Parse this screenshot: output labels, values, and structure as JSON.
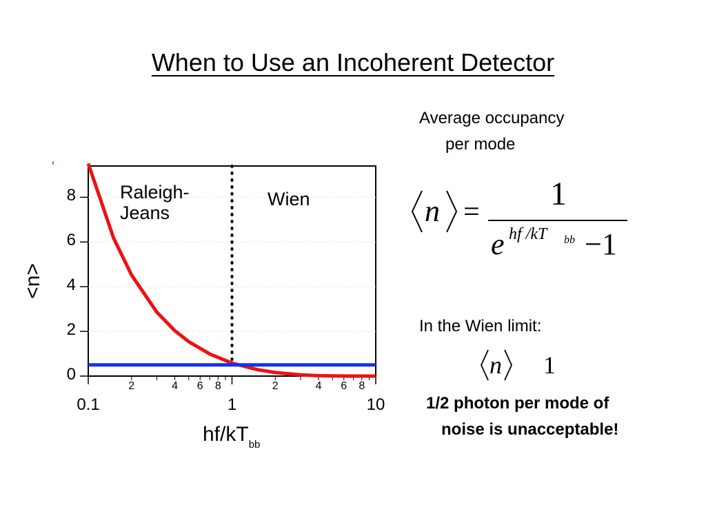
{
  "slide": {
    "title": "When to Use an Incoherent Detector",
    "occupancy_line1": "Average occupancy",
    "occupancy_line2": "per mode",
    "formula": {
      "lhs": "n",
      "numerator": "1",
      "base": "e",
      "exponent": "hf /kT",
      "exponent_sub": "bb",
      "minus_one": "−1"
    },
    "wien_limit_label": "In the Wien limit:",
    "wien_limit_expr": {
      "var": "n",
      "symbol": "",
      "value": "1"
    },
    "note_line1": "1/2 photon per mode of",
    "note_line2": "noise is unacceptable!"
  },
  "chart_data": {
    "type": "line",
    "x_scale": "log",
    "xlim": [
      0.1,
      10
    ],
    "ylim": [
      0,
      9.4
    ],
    "xlabel": "hf/kT",
    "xlabel_sub": "bb",
    "ylabel": "<n>",
    "x_major_ticks": [
      "0.1",
      "1",
      "10"
    ],
    "x_minor_labels": [
      "2",
      "4",
      "6",
      "8",
      "2",
      "4",
      "6",
      "8"
    ],
    "y_ticks": [
      "0",
      "2",
      "4",
      "6",
      "8"
    ],
    "region_left": "Raleigh-Jeans",
    "region_right": "Wien",
    "divider_x": 1,
    "series": [
      {
        "color": "#ee1111",
        "x": [
          0.1,
          0.15,
          0.2,
          0.3,
          0.4,
          0.5,
          0.7,
          1,
          1.5,
          2,
          3,
          4,
          5,
          7,
          10
        ],
        "y": [
          9.51,
          6.18,
          4.52,
          2.86,
          2.03,
          1.54,
          0.99,
          0.58,
          0.29,
          0.157,
          0.052,
          0.019,
          0.0068,
          0.0009,
          5e-05
        ]
      },
      {
        "color": "#1133ee",
        "x": [
          0.1,
          10
        ],
        "y": [
          0.5,
          0.5
        ]
      }
    ]
  }
}
